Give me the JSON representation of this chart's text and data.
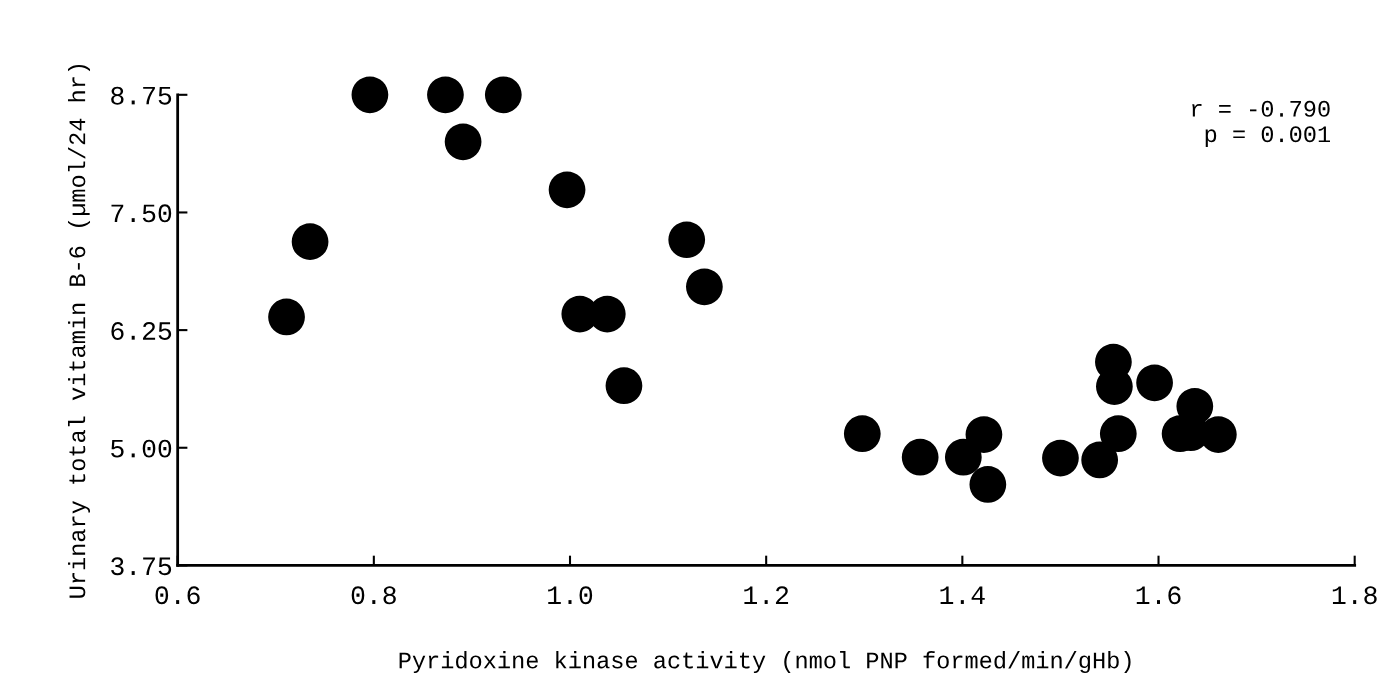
{
  "chart_data": {
    "type": "scatter",
    "xlabel": "Pyridoxine kinase activity (nmol PNP formed/min/gHb)",
    "ylabel": "Urinary total vitamin B-6 (µmol/24 hr)",
    "x": [
      0.711,
      0.735,
      0.796,
      0.873,
      0.932,
      0.891,
      0.997,
      1.01,
      1.038,
      1.055,
      1.119,
      1.137,
      1.298,
      1.357,
      1.401,
      1.422,
      1.426,
      1.5,
      1.54,
      1.554,
      1.555,
      1.559,
      1.596,
      1.622,
      1.633,
      1.637,
      1.661
    ],
    "series": [
      {
        "color": "#000000",
        "values": [
          6.39,
          7.19,
          8.75,
          8.75,
          8.75,
          8.25,
          7.74,
          6.42,
          6.42,
          5.66,
          7.21,
          6.71,
          5.15,
          4.9,
          4.9,
          5.14,
          4.61,
          4.89,
          4.87,
          5.91,
          5.65,
          5.15,
          5.69,
          5.15,
          5.16,
          5.44,
          5.14
        ]
      }
    ],
    "xlim": [
      0.6,
      1.8
    ],
    "ylim": [
      3.75,
      8.75
    ],
    "xticks": [
      {
        "value": 0.6,
        "label": "0.6"
      },
      {
        "value": 0.8,
        "label": "0.8"
      },
      {
        "value": 1.0,
        "label": "1.0"
      },
      {
        "value": 1.2,
        "label": "1.2"
      },
      {
        "value": 1.4,
        "label": "1.4"
      },
      {
        "value": 1.6,
        "label": "1.6"
      },
      {
        "value": 1.8,
        "label": "1.8"
      }
    ],
    "yticks": [
      {
        "value": 3.75,
        "label": "3.75"
      },
      {
        "value": 5.0,
        "label": "5.00"
      },
      {
        "value": 6.25,
        "label": "6.25"
      },
      {
        "value": 7.5,
        "label": "7.50"
      },
      {
        "value": 8.75,
        "label": "8.75"
      }
    ],
    "annotations": [
      "r = -0.790\np = 0.001"
    ],
    "grid": false,
    "legend": false,
    "marker": "circle"
  }
}
